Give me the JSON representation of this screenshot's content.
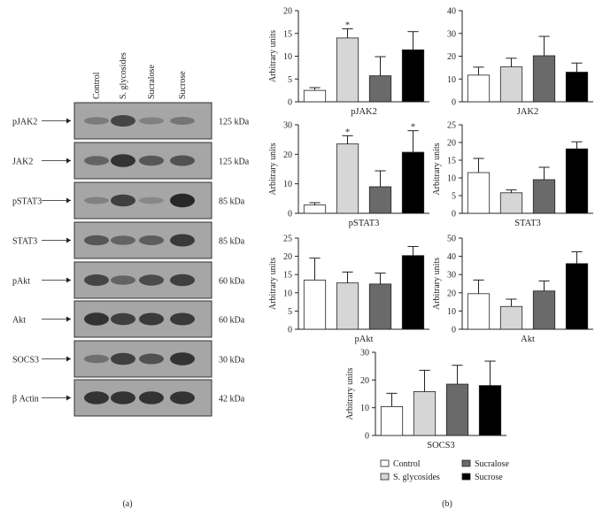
{
  "figure": {
    "panel_a_label": "(a)",
    "panel_b_label": "(b)"
  },
  "blot": {
    "lanes": [
      "Control",
      "S. glycosides",
      "Sucralose",
      "Sucrose"
    ],
    "rows": [
      {
        "protein": "pJAK2",
        "kda": "125 kDa"
      },
      {
        "protein": "JAK2",
        "kda": "125 kDa"
      },
      {
        "protein": "pSTAT3",
        "kda": "85 kDa"
      },
      {
        "protein": "STAT3",
        "kda": "85 kDa"
      },
      {
        "protein": "pAkt",
        "kda": "60 kDa"
      },
      {
        "protein": "Akt",
        "kda": "60 kDa"
      },
      {
        "protein": "SOCS3",
        "kda": "30 kDa"
      },
      {
        "protein": "β Actin",
        "kda": "42 kDa"
      }
    ],
    "bands": [
      [
        0.25,
        0.7,
        0.2,
        0.3
      ],
      [
        0.45,
        0.85,
        0.55,
        0.6
      ],
      [
        0.2,
        0.75,
        0.15,
        0.95
      ],
      [
        0.55,
        0.45,
        0.5,
        0.8
      ],
      [
        0.7,
        0.45,
        0.65,
        0.75
      ],
      [
        0.85,
        0.75,
        0.8,
        0.8
      ],
      [
        0.35,
        0.75,
        0.6,
        0.85
      ],
      [
        0.85,
        0.85,
        0.85,
        0.85
      ]
    ]
  },
  "legend": {
    "items": [
      {
        "label": "Control",
        "color": "#ffffff"
      },
      {
        "label": "S. glycosides",
        "color": "#d6d6d6"
      },
      {
        "label": "Sucralose",
        "color": "#6a6a6a"
      },
      {
        "label": "Sucrose",
        "color": "#000000"
      }
    ]
  },
  "chart_data": [
    {
      "type": "bar",
      "xlabel": "pJAK2",
      "ylabel": "Arbitrary units",
      "categories": [
        "Control",
        "S. glycosides",
        "Sucralose",
        "Sucrose"
      ],
      "values": [
        2.5,
        14,
        5.7,
        11.4
      ],
      "errors": [
        0.6,
        2.0,
        4.2,
        4.0
      ],
      "significant": [
        false,
        true,
        false,
        false
      ],
      "ylim": [
        0,
        20
      ],
      "yticks": [
        0,
        5,
        10,
        15,
        20
      ],
      "grid": false
    },
    {
      "type": "bar",
      "xlabel": "JAK2",
      "ylabel": "",
      "categories": [
        "Control",
        "S. glycosides",
        "Sucralose",
        "Sucrose"
      ],
      "values": [
        11.7,
        15.3,
        20.2,
        13
      ],
      "errors": [
        3.5,
        3.8,
        8.5,
        4.0
      ],
      "significant": [
        false,
        false,
        false,
        false
      ],
      "ylim": [
        0,
        40
      ],
      "yticks": [
        0,
        10,
        20,
        30,
        40
      ],
      "grid": false
    },
    {
      "type": "bar",
      "xlabel": "pSTAT3",
      "ylabel": "Arbitrary units",
      "categories": [
        "Control",
        "S. glycosides",
        "Sucralose",
        "Sucrose"
      ],
      "values": [
        2.8,
        23.5,
        9,
        20.7
      ],
      "errors": [
        0.8,
        2.8,
        5.4,
        7.3
      ],
      "significant": [
        false,
        true,
        false,
        true
      ],
      "ylim": [
        0,
        30
      ],
      "yticks": [
        0,
        10,
        20,
        30
      ],
      "grid": false
    },
    {
      "type": "bar",
      "xlabel": "STAT3",
      "ylabel": "Arbitrary units",
      "categories": [
        "Control",
        "S. glycosides",
        "Sucralose",
        "Sucrose"
      ],
      "values": [
        11.5,
        5.8,
        9.5,
        18.2
      ],
      "errors": [
        4.0,
        0.8,
        3.5,
        2.0
      ],
      "significant": [
        false,
        false,
        false,
        false
      ],
      "ylim": [
        0,
        25
      ],
      "yticks": [
        0,
        5,
        10,
        15,
        20,
        25
      ],
      "grid": false
    },
    {
      "type": "bar",
      "xlabel": "pAkt",
      "ylabel": "Arbitrary units",
      "categories": [
        "Control",
        "S. glycosides",
        "Sucralose",
        "Sucrose"
      ],
      "values": [
        13.5,
        12.7,
        12.4,
        20.2
      ],
      "errors": [
        6.0,
        3.0,
        3.0,
        2.5
      ],
      "significant": [
        false,
        false,
        false,
        false
      ],
      "ylim": [
        0,
        25
      ],
      "yticks": [
        0,
        5,
        10,
        15,
        20,
        25
      ],
      "grid": false
    },
    {
      "type": "bar",
      "xlabel": "Akt",
      "ylabel": "Arbitrary units",
      "categories": [
        "Control",
        "S. glycosides",
        "Sucralose",
        "Sucrose"
      ],
      "values": [
        19.5,
        12.5,
        21,
        36
      ],
      "errors": [
        7.5,
        4.0,
        5.5,
        6.5
      ],
      "significant": [
        false,
        false,
        false,
        false
      ],
      "ylim": [
        0,
        50
      ],
      "yticks": [
        0,
        10,
        20,
        30,
        40,
        50
      ],
      "grid": false
    },
    {
      "type": "bar",
      "xlabel": "SOCS3",
      "ylabel": "Arbitrary units",
      "categories": [
        "Control",
        "S. glycosides",
        "Sucralose",
        "Sucrose"
      ],
      "values": [
        10.4,
        15.8,
        18.5,
        18
      ],
      "errors": [
        4.8,
        7.7,
        6.8,
        8.8
      ],
      "significant": [
        false,
        false,
        false,
        false
      ],
      "ylim": [
        0,
        30
      ],
      "yticks": [
        0,
        10,
        20,
        30
      ],
      "grid": false
    }
  ]
}
